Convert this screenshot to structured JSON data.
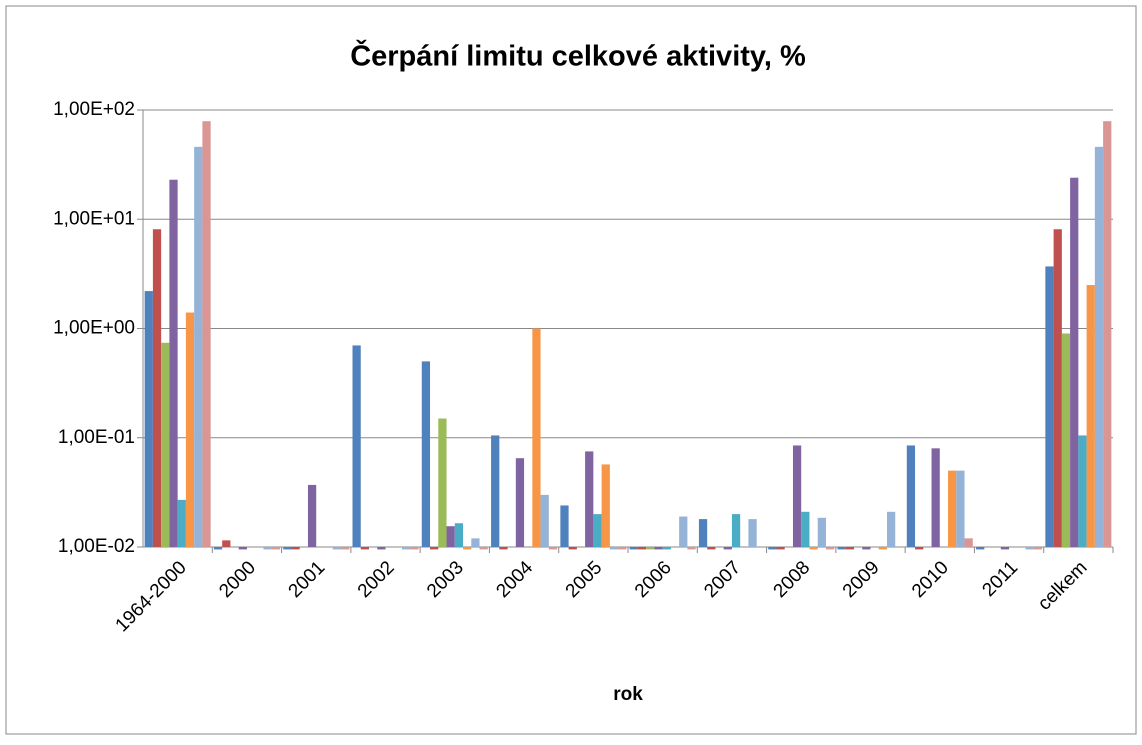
{
  "chart_data": {
    "type": "bar",
    "title": "Čerpání limitu celkové aktivity, %",
    "x_label": "rok",
    "categories": [
      "1964-2000",
      "2000",
      "2001",
      "2002",
      "2003",
      "2004",
      "2005",
      "2006",
      "2007",
      "2008",
      "2009",
      "2010",
      "2011",
      "celkem"
    ],
    "log_scale": true,
    "grid": true,
    "ylim": [
      0.01,
      100
    ],
    "yticks": [
      {
        "value": 0.01,
        "label": "1,00E-02"
      },
      {
        "value": 0.1,
        "label": "1,00E-01"
      },
      {
        "value": 1,
        "label": "1,00E+00"
      },
      {
        "value": 10,
        "label": "1,00E+01"
      },
      {
        "value": 100,
        "label": "1,00E+02"
      }
    ],
    "series": [
      {
        "color": "#4f81bd",
        "values": [
          2.2,
          0.0095,
          0.0095,
          0.7,
          0.5,
          0.105,
          0.024,
          0.0095,
          0.018,
          0.0095,
          0.0095,
          0.085,
          0.0095,
          3.7
        ]
      },
      {
        "color": "#c0504d",
        "values": [
          8.1,
          0.0115,
          0.0095,
          0.0095,
          0.0095,
          0.0095,
          0.0095,
          0.0095,
          0.0095,
          0.0095,
          0.0095,
          0.0095,
          null,
          8.1
        ]
      },
      {
        "color": "#9bbb59",
        "values": [
          0.74,
          null,
          null,
          null,
          0.15,
          null,
          null,
          0.0095,
          null,
          null,
          null,
          null,
          null,
          0.9
        ]
      },
      {
        "color": "#8064a2",
        "values": [
          23,
          0.0095,
          0.037,
          0.0095,
          0.0155,
          0.065,
          0.075,
          0.0095,
          0.0095,
          0.085,
          0.0095,
          0.08,
          0.0095,
          24
        ]
      },
      {
        "color": "#4bacc6",
        "values": [
          0.027,
          null,
          null,
          null,
          0.0165,
          null,
          0.02,
          0.0095,
          0.02,
          0.021,
          null,
          null,
          null,
          0.105
        ]
      },
      {
        "color": "#f79646",
        "values": [
          1.4,
          null,
          null,
          null,
          0.0095,
          1.0,
          0.057,
          null,
          null,
          0.0095,
          0.0095,
          0.05,
          null,
          2.5
        ]
      },
      {
        "color": "#95b3d7",
        "values": [
          46,
          0.0095,
          0.0095,
          0.0095,
          0.012,
          0.03,
          0.0095,
          0.019,
          0.018,
          0.0185,
          0.021,
          0.05,
          0.0095,
          46
        ]
      },
      {
        "color": "#d99694",
        "values": [
          79,
          0.0095,
          0.0095,
          0.0095,
          0.0095,
          0.0095,
          0.0095,
          0.0095,
          null,
          0.0095,
          null,
          0.012,
          0.0095,
          79
        ]
      }
    ]
  }
}
